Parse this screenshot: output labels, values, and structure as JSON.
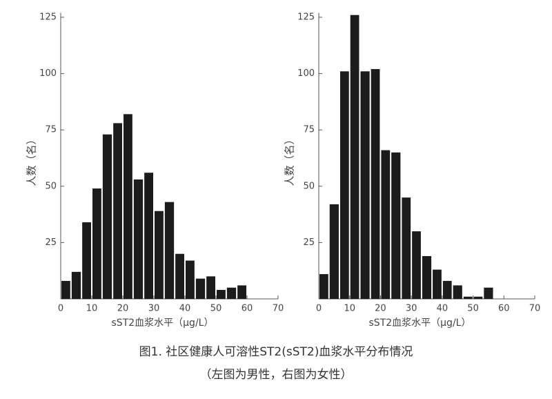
{
  "chart_data": [
    {
      "type": "histogram",
      "xlabel": "sST2血浆水平（μg/L）",
      "ylabel": "人数（名）",
      "bins": [
        0,
        3.3,
        6.7,
        10,
        13.3,
        16.7,
        20,
        23.3,
        26.7,
        30,
        33.3,
        36.7,
        40,
        43.3,
        46.7,
        50,
        53.3,
        56.7,
        60
      ],
      "values": [
        8,
        12,
        34,
        49,
        73,
        78,
        82,
        53,
        56,
        39,
        43,
        20,
        17,
        9,
        10,
        4,
        5,
        6
      ],
      "color": "#1c1c1c",
      "xlim": [
        0,
        70
      ],
      "xticks": [
        0,
        10,
        20,
        30,
        40,
        50,
        60,
        70
      ],
      "ylim": [
        0,
        127
      ],
      "yticks": [
        25,
        50,
        75,
        100,
        125
      ]
    },
    {
      "type": "histogram",
      "xlabel": "sST2血浆水平（μg/L）",
      "ylabel": "人数（名）",
      "bins": [
        0,
        3.3,
        6.7,
        10,
        13.3,
        16.7,
        20,
        23.3,
        26.7,
        30,
        33.3,
        36.7,
        40,
        43.3,
        46.7,
        50,
        53.3,
        56.7
      ],
      "values": [
        11,
        42,
        101,
        126,
        101,
        102,
        66,
        65,
        45,
        30,
        19,
        13,
        8,
        6,
        1,
        1,
        5
      ],
      "color": "#1c1c1c",
      "xlim": [
        0,
        70
      ],
      "xticks": [
        0,
        10,
        20,
        30,
        40,
        50,
        60,
        70
      ],
      "ylim": [
        0,
        127
      ],
      "yticks": [
        25,
        50,
        75,
        100,
        125
      ]
    }
  ],
  "caption": [
    "图1. 社区健康人可溶性ST2(sST2)血浆水平分布情况",
    "（左图为男性，右图为女性）"
  ]
}
